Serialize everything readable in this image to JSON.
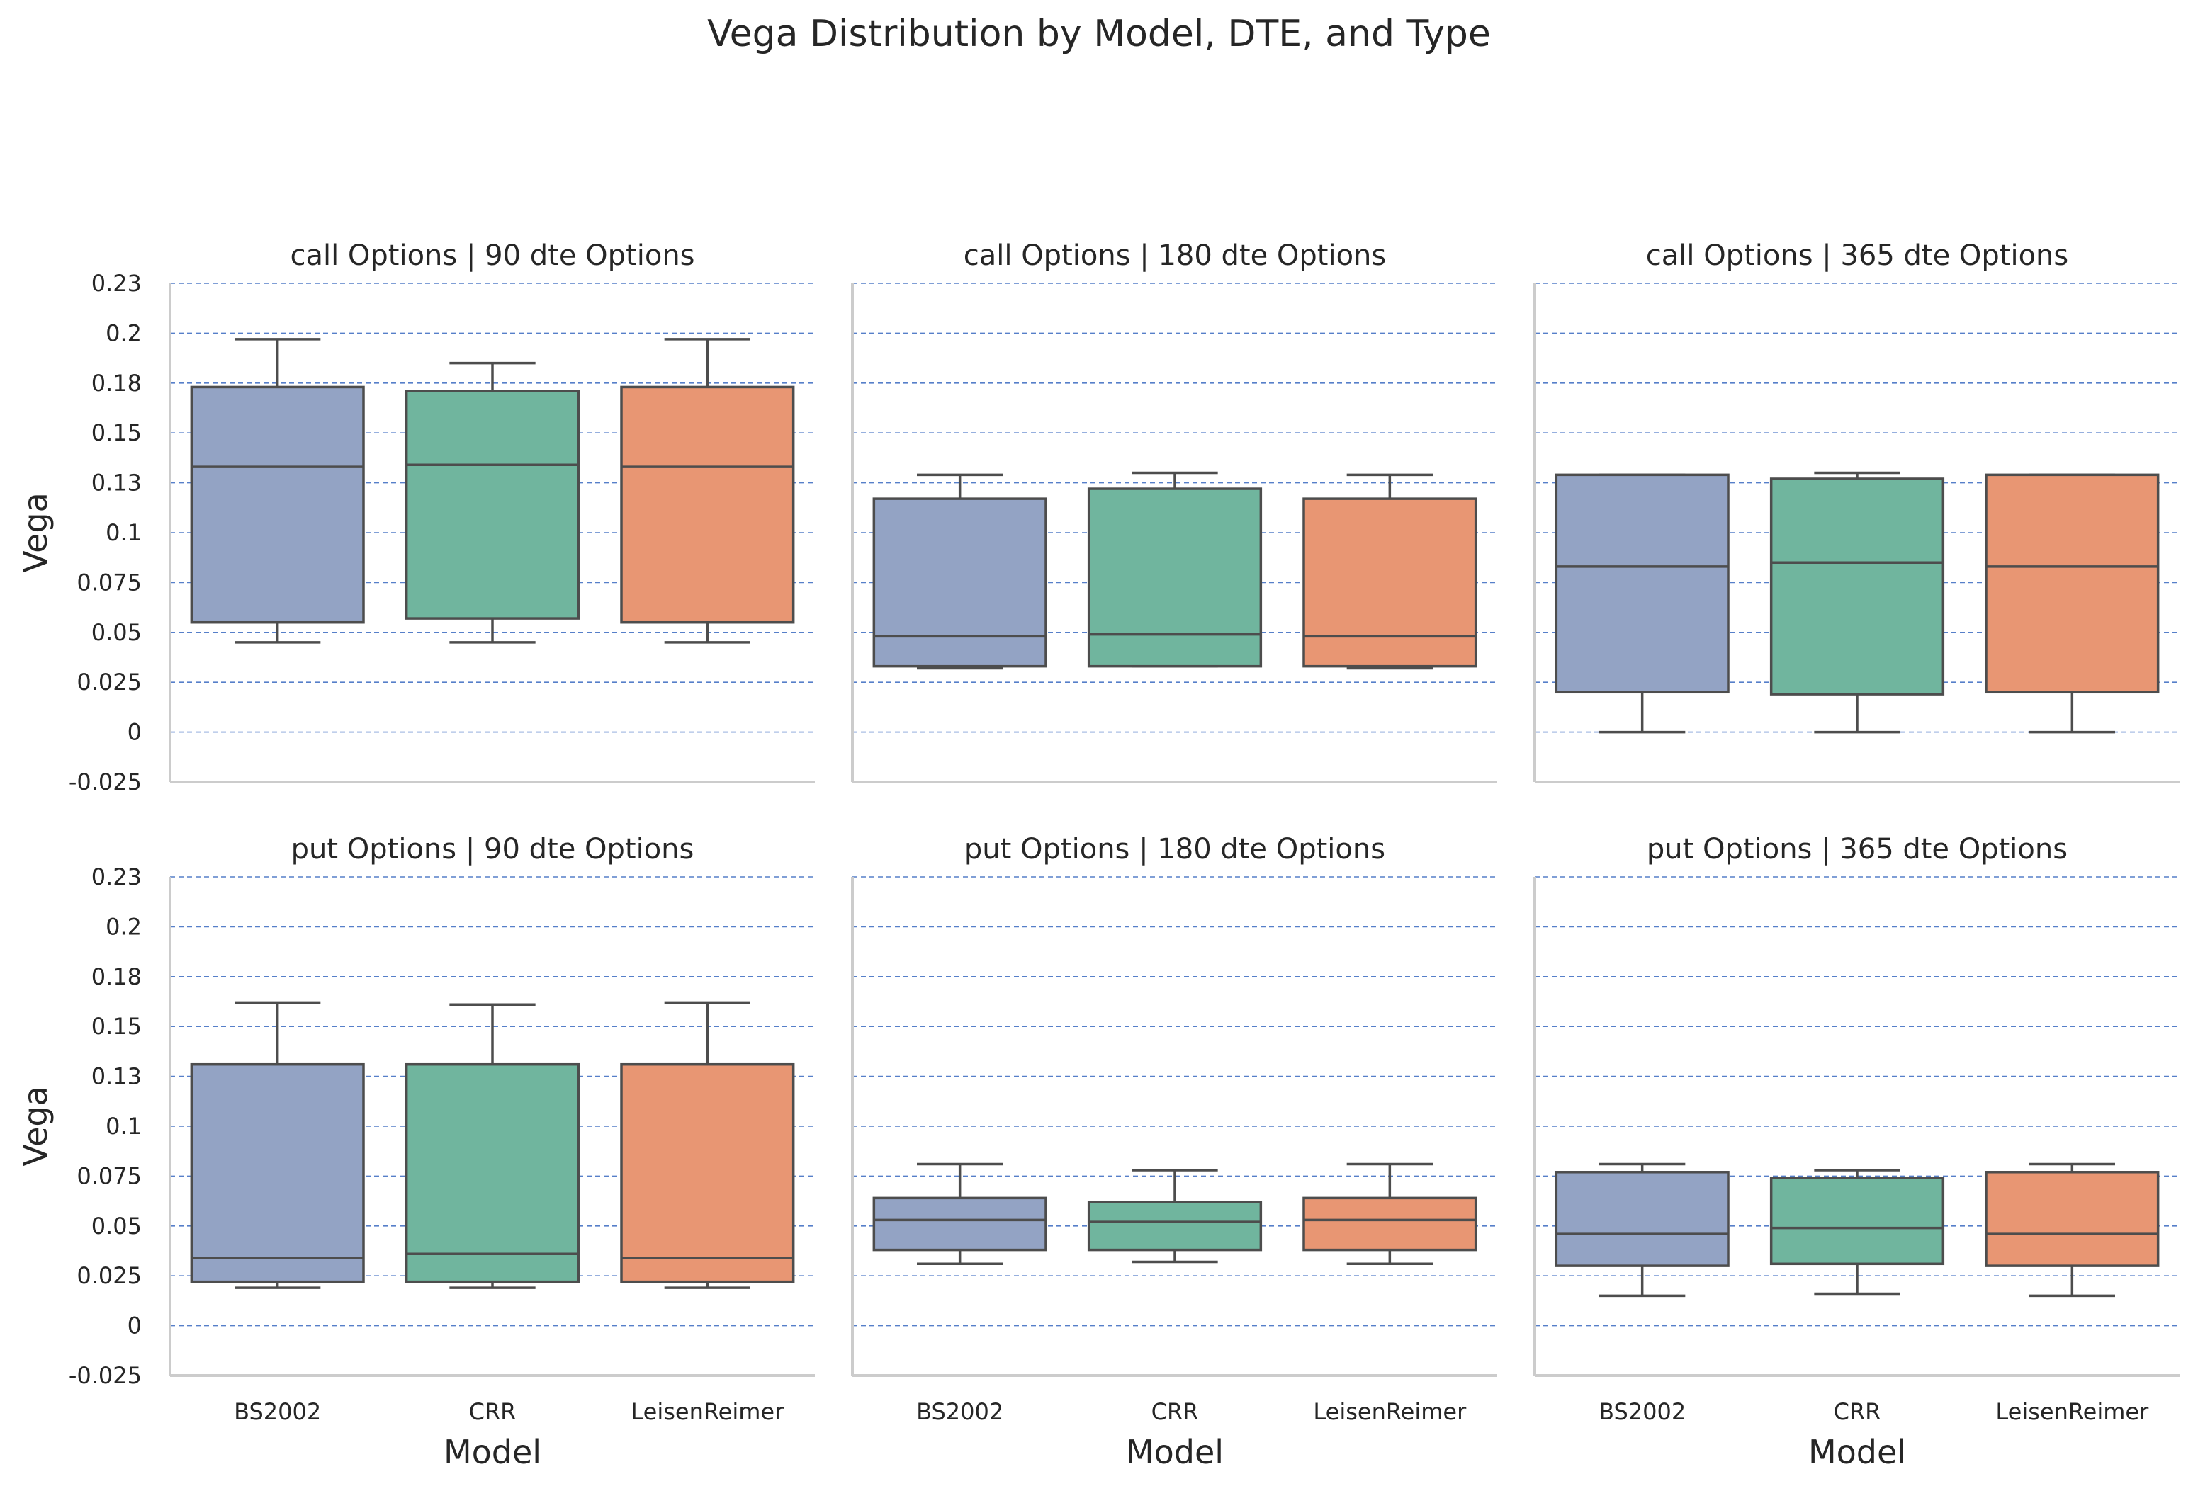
{
  "colors": {
    "BS2002": "#93a3c4",
    "CRR": "#70b59e",
    "LeisenReimer": "#e89673",
    "grid": "#4472c4",
    "spine": "#cccccc",
    "box_edge": "#4d4d4d"
  },
  "chart_data": {
    "type": "box",
    "title": "Vega Distribution by Model, DTE, and Type",
    "categories": [
      "BS2002",
      "CRR",
      "LeisenReimer"
    ],
    "xlabel": "Model",
    "ylabel": "Vega",
    "ylim": [
      -0.025,
      0.225
    ],
    "yticks": [
      -0.025,
      0,
      0.025,
      0.05,
      0.075,
      0.1,
      0.125,
      0.15,
      0.175,
      0.2,
      0.225
    ],
    "ytick_labels": [
      "-0.025",
      "0",
      "0.025",
      "0.05",
      "0.075",
      "0.1",
      "0.13",
      "0.15",
      "0.18",
      "0.2",
      "0.23"
    ],
    "grid": "horizontal dashed",
    "panels": [
      {
        "title": "call Options | 90 dte Options",
        "boxes": [
          {
            "name": "BS2002",
            "whislo": 0.045,
            "q1": 0.055,
            "med": 0.133,
            "q3": 0.173,
            "whishi": 0.197
          },
          {
            "name": "CRR",
            "whislo": 0.045,
            "q1": 0.057,
            "med": 0.134,
            "q3": 0.171,
            "whishi": 0.185
          },
          {
            "name": "LeisenReimer",
            "whislo": 0.045,
            "q1": 0.055,
            "med": 0.133,
            "q3": 0.173,
            "whishi": 0.197
          }
        ]
      },
      {
        "title": "call Options | 180 dte Options",
        "boxes": [
          {
            "name": "BS2002",
            "whislo": 0.032,
            "q1": 0.033,
            "med": 0.048,
            "q3": 0.117,
            "whishi": 0.129
          },
          {
            "name": "CRR",
            "whislo": 0.033,
            "q1": 0.033,
            "med": 0.049,
            "q3": 0.122,
            "whishi": 0.13
          },
          {
            "name": "LeisenReimer",
            "whislo": 0.032,
            "q1": 0.033,
            "med": 0.048,
            "q3": 0.117,
            "whishi": 0.129
          }
        ]
      },
      {
        "title": "call Options | 365 dte Options",
        "boxes": [
          {
            "name": "BS2002",
            "whislo": 0.0,
            "q1": 0.02,
            "med": 0.083,
            "q3": 0.129,
            "whishi": 0.129
          },
          {
            "name": "CRR",
            "whislo": 0.0,
            "q1": 0.019,
            "med": 0.085,
            "q3": 0.127,
            "whishi": 0.13
          },
          {
            "name": "LeisenReimer",
            "whislo": 0.0,
            "q1": 0.02,
            "med": 0.083,
            "q3": 0.129,
            "whishi": 0.129
          }
        ]
      },
      {
        "title": "put Options | 90 dte Options",
        "boxes": [
          {
            "name": "BS2002",
            "whislo": 0.019,
            "q1": 0.022,
            "med": 0.034,
            "q3": 0.131,
            "whishi": 0.162
          },
          {
            "name": "CRR",
            "whislo": 0.019,
            "q1": 0.022,
            "med": 0.036,
            "q3": 0.131,
            "whishi": 0.161
          },
          {
            "name": "LeisenReimer",
            "whislo": 0.019,
            "q1": 0.022,
            "med": 0.034,
            "q3": 0.131,
            "whishi": 0.162
          }
        ]
      },
      {
        "title": "put Options | 180 dte Options",
        "boxes": [
          {
            "name": "BS2002",
            "whislo": 0.031,
            "q1": 0.038,
            "med": 0.053,
            "q3": 0.064,
            "whishi": 0.081
          },
          {
            "name": "CRR",
            "whislo": 0.032,
            "q1": 0.038,
            "med": 0.052,
            "q3": 0.062,
            "whishi": 0.078
          },
          {
            "name": "LeisenReimer",
            "whislo": 0.031,
            "q1": 0.038,
            "med": 0.053,
            "q3": 0.064,
            "whishi": 0.081
          }
        ]
      },
      {
        "title": "put Options | 365 dte Options",
        "boxes": [
          {
            "name": "BS2002",
            "whislo": 0.015,
            "q1": 0.03,
            "med": 0.046,
            "q3": 0.077,
            "whishi": 0.081
          },
          {
            "name": "CRR",
            "whislo": 0.016,
            "q1": 0.031,
            "med": 0.049,
            "q3": 0.074,
            "whishi": 0.078
          },
          {
            "name": "LeisenReimer",
            "whislo": 0.015,
            "q1": 0.03,
            "med": 0.046,
            "q3": 0.077,
            "whishi": 0.081
          }
        ]
      }
    ]
  }
}
